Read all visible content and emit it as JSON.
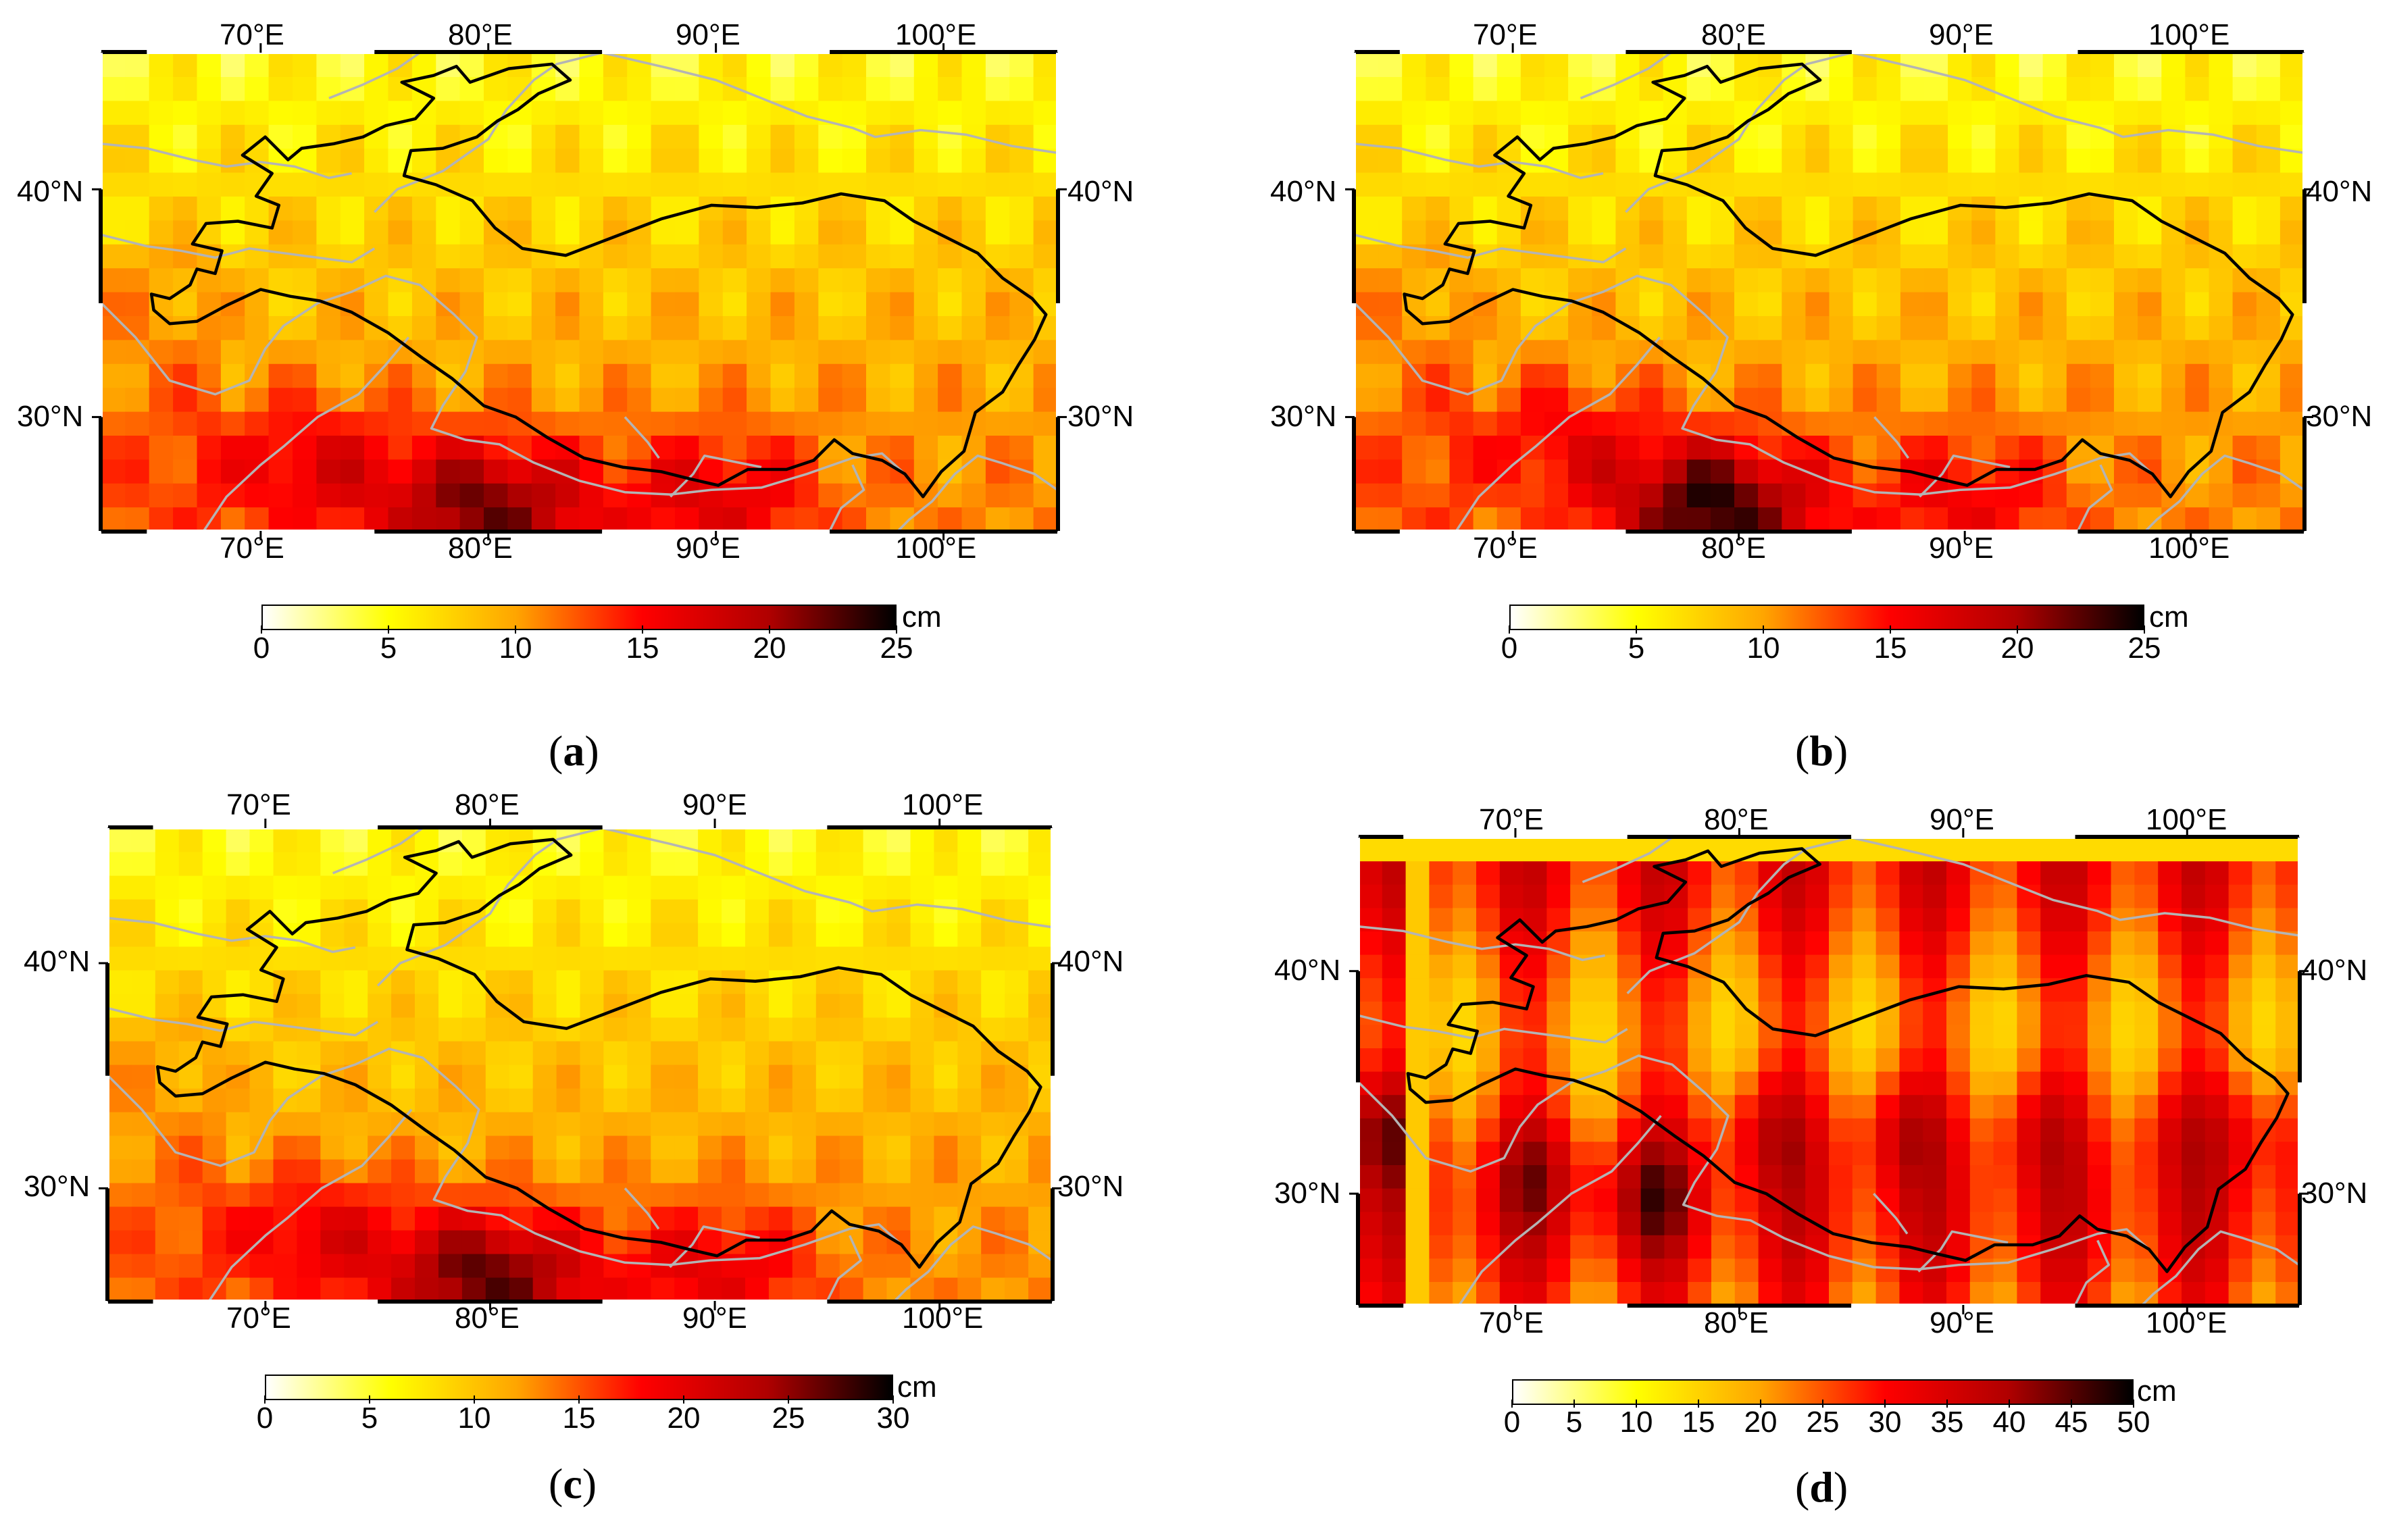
{
  "colormap": [
    "#ffffff",
    "#ffff00",
    "#ffa500",
    "#ff0000",
    "#b00000",
    "#000000"
  ],
  "outline_color": "#000000",
  "border_color": "#b4b4b4",
  "extent": {
    "lon": [
      63,
      105
    ],
    "lat": [
      25,
      46
    ]
  },
  "lon_ticks": [
    "70°E",
    "80°E",
    "90°E",
    "100°E"
  ],
  "lat_ticks": [
    "40°N",
    "30°N"
  ],
  "panels": [
    {
      "caption_letter": "a",
      "unit": "cm",
      "colorbar": {
        "min": 0,
        "max": 25,
        "tick_labels": [
          "0",
          "5",
          "10",
          "15",
          "20",
          "25"
        ]
      },
      "chart_data": {
        "type": "heatmap",
        "value_range": [
          0,
          25
        ],
        "hotspots": [
          {
            "lon": 80,
            "lat": 26,
            "value": 22
          },
          {
            "lon": 72,
            "lat": 28,
            "value": 17
          },
          {
            "lon": 90,
            "lat": 26.5,
            "value": 17
          }
        ],
        "typical_value_plateau": 11,
        "typical_value_north": 5
      }
    },
    {
      "caption_letter": "b",
      "unit": "cm",
      "colorbar": {
        "min": 0,
        "max": 25,
        "tick_labels": [
          "0",
          "5",
          "10",
          "15",
          "20",
          "25"
        ]
      },
      "chart_data": {
        "type": "heatmap",
        "value_range": [
          0,
          25
        ],
        "hotspots": [
          {
            "lon": 79,
            "lat": 26,
            "value": 24
          },
          {
            "lon": 72,
            "lat": 29,
            "value": 16
          },
          {
            "lon": 90,
            "lat": 26.5,
            "value": 16
          }
        ],
        "typical_value_plateau": 11,
        "typical_value_north": 5
      }
    },
    {
      "caption_letter": "c",
      "unit": "cm",
      "colorbar": {
        "min": 0,
        "max": 30,
        "tick_labels": [
          "0",
          "5",
          "10",
          "15",
          "20",
          "25",
          "30"
        ]
      },
      "chart_data": {
        "type": "heatmap",
        "value_range": [
          0,
          30
        ],
        "hotspots": [
          {
            "lon": 80,
            "lat": 26,
            "value": 27
          },
          {
            "lon": 72,
            "lat": 28,
            "value": 20
          },
          {
            "lon": 90,
            "lat": 26.5,
            "value": 20
          }
        ],
        "typical_value_plateau": 13,
        "typical_value_north": 6
      }
    },
    {
      "caption_letter": "d",
      "unit": "cm",
      "colorbar": {
        "min": 0,
        "max": 50,
        "tick_labels": [
          "0",
          "5",
          "10",
          "15",
          "20",
          "25",
          "30",
          "35",
          "40",
          "45",
          "50"
        ]
      },
      "chart_data": {
        "type": "heatmap",
        "value_range": [
          0,
          50
        ],
        "pattern": "striped",
        "hotspots": [
          {
            "lon": 81,
            "lat": 33,
            "value": 42
          },
          {
            "lon": 87,
            "lat": 33,
            "value": 42
          },
          {
            "lon": 93,
            "lat": 33,
            "value": 40
          },
          {
            "lon": 99,
            "lat": 33,
            "value": 38
          },
          {
            "lon": 64,
            "lat": 33,
            "value": 44
          },
          {
            "lon": 71,
            "lat": 31,
            "value": 40
          },
          {
            "lon": 76,
            "lat": 30,
            "value": 42
          },
          {
            "lon": 103,
            "lat": 33,
            "value": 40
          }
        ],
        "typical_value": 32
      }
    }
  ]
}
